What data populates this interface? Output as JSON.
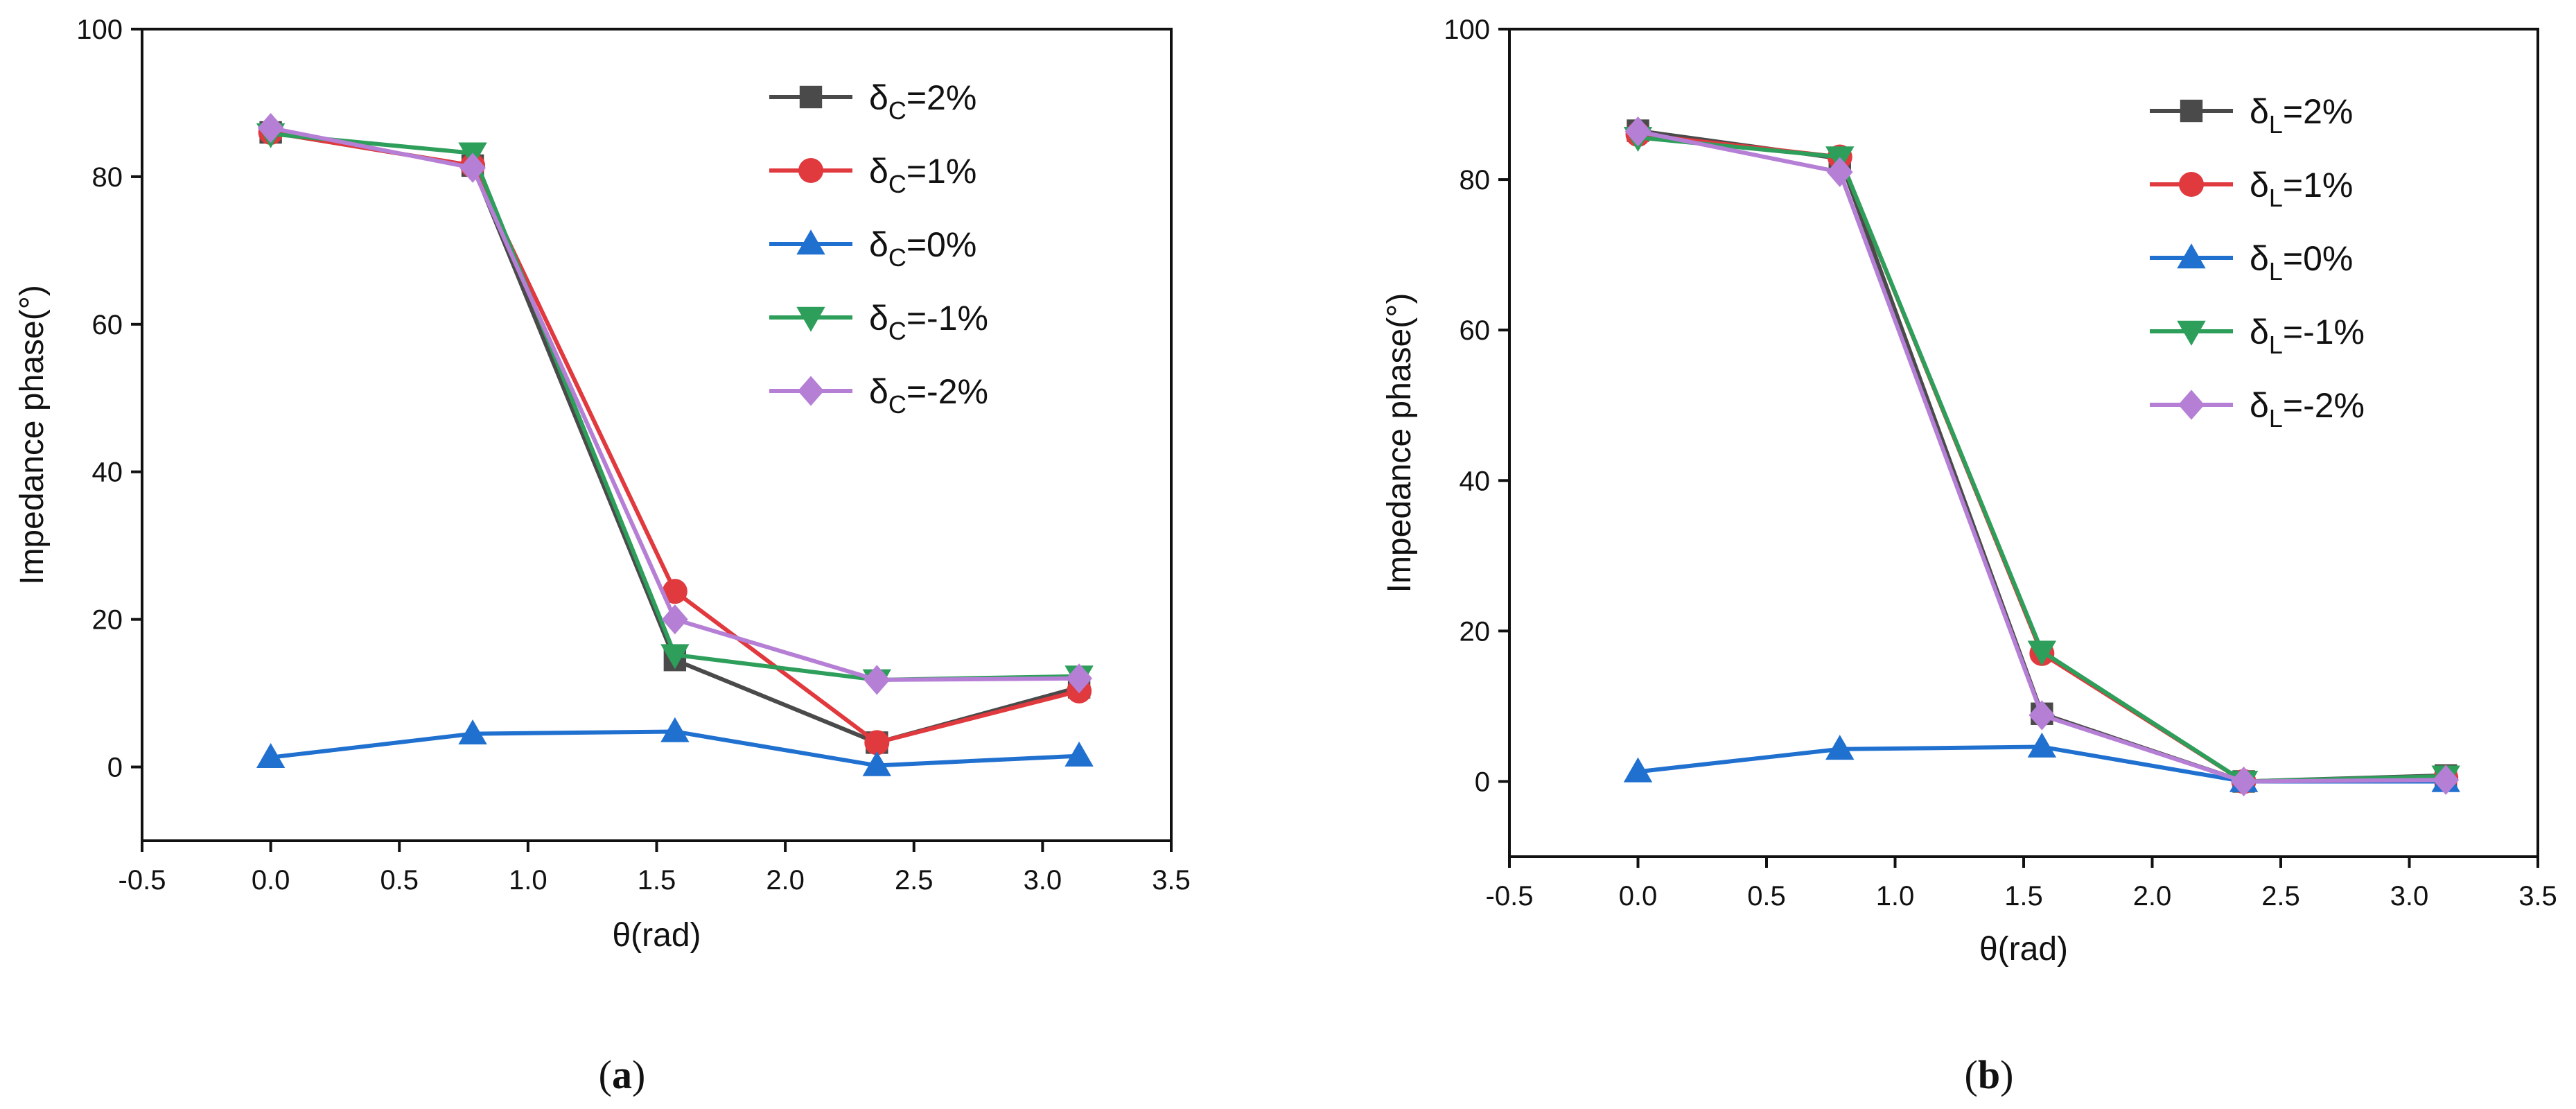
{
  "chart_data": [
    {
      "type": "line",
      "panel_label": {
        "open": "(",
        "letter": "a",
        "close": ")"
      },
      "xlabel": "θ(rad)",
      "ylabel": "Impedance phase(°)",
      "xlim": [
        -0.5,
        3.5
      ],
      "ylim": [
        -10,
        100
      ],
      "xticks": [
        -0.5,
        0.0,
        0.5,
        1.0,
        1.5,
        2.0,
        2.5,
        3.0,
        3.5
      ],
      "xtick_labels": [
        "-0.5",
        "0.0",
        "0.5",
        "1.0",
        "1.5",
        "2.0",
        "2.5",
        "3.0",
        "3.5"
      ],
      "yticks": [
        0,
        20,
        40,
        60,
        80,
        100
      ],
      "ytick_labels": [
        "0",
        "20",
        "40",
        "60",
        "80",
        "100"
      ],
      "legend_position": "top-right",
      "x": [
        0.0,
        0.785,
        1.571,
        2.356,
        3.142
      ],
      "series": [
        {
          "base": "δ",
          "sub": "C",
          "value": "=2%",
          "color": "#4a4a4a",
          "marker": "square",
          "values": [
            86.0,
            81.5,
            14.5,
            3.3,
            10.8
          ]
        },
        {
          "base": "δ",
          "sub": "C",
          "value": "=1%",
          "color": "#e0393e",
          "marker": "circle",
          "values": [
            86.0,
            81.5,
            23.8,
            3.3,
            10.3
          ]
        },
        {
          "base": "δ",
          "sub": "C",
          "value": "=0%",
          "color": "#2070d0",
          "marker": "triangle-up",
          "values": [
            1.3,
            4.5,
            4.8,
            0.2,
            1.5
          ]
        },
        {
          "base": "δ",
          "sub": "C",
          "value": "=-1%",
          "color": "#2e9e5b",
          "marker": "triangle-down",
          "values": [
            85.8,
            83.2,
            15.2,
            11.8,
            12.3
          ]
        },
        {
          "base": "δ",
          "sub": "C",
          "value": "=-2%",
          "color": "#b67fd6",
          "marker": "diamond",
          "values": [
            86.6,
            81.2,
            20.0,
            11.8,
            12.0
          ]
        }
      ]
    },
    {
      "type": "line",
      "panel_label": {
        "open": "(",
        "letter": "b",
        "close": ")"
      },
      "xlabel": "θ(rad)",
      "ylabel": "Impedance phase(°)",
      "xlim": [
        -0.5,
        3.5
      ],
      "ylim": [
        -10,
        100
      ],
      "xticks": [
        -0.5,
        0.0,
        0.5,
        1.0,
        1.5,
        2.0,
        2.5,
        3.0,
        3.5
      ],
      "xtick_labels": [
        "-0.5",
        "0.0",
        "0.5",
        "1.0",
        "1.5",
        "2.0",
        "2.5",
        "3.0",
        "3.5"
      ],
      "yticks": [
        0,
        20,
        40,
        60,
        80,
        100
      ],
      "ytick_labels": [
        "0",
        "20",
        "40",
        "60",
        "80",
        "100"
      ],
      "legend_position": "top-right",
      "x": [
        0.0,
        0.785,
        1.571,
        2.356,
        3.142
      ],
      "series": [
        {
          "base": "δ",
          "sub": "L",
          "value": "=2%",
          "color": "#4a4a4a",
          "marker": "square",
          "values": [
            86.5,
            82.8,
            9.0,
            0.0,
            0.8
          ]
        },
        {
          "base": "δ",
          "sub": "L",
          "value": "=1%",
          "color": "#e0393e",
          "marker": "circle",
          "values": [
            86.0,
            83.0,
            17.0,
            0.0,
            0.5
          ]
        },
        {
          "base": "δ",
          "sub": "L",
          "value": "=0%",
          "color": "#2070d0",
          "marker": "triangle-up",
          "values": [
            1.3,
            4.3,
            4.6,
            0.0,
            0.0
          ]
        },
        {
          "base": "δ",
          "sub": "L",
          "value": "=-1%",
          "color": "#2e9e5b",
          "marker": "triangle-down",
          "values": [
            85.6,
            83.0,
            17.3,
            0.0,
            0.7
          ]
        },
        {
          "base": "δ",
          "sub": "L",
          "value": "=-2%",
          "color": "#b67fd6",
          "marker": "diamond",
          "values": [
            86.4,
            81.0,
            8.8,
            0.0,
            0.2
          ]
        }
      ]
    }
  ]
}
